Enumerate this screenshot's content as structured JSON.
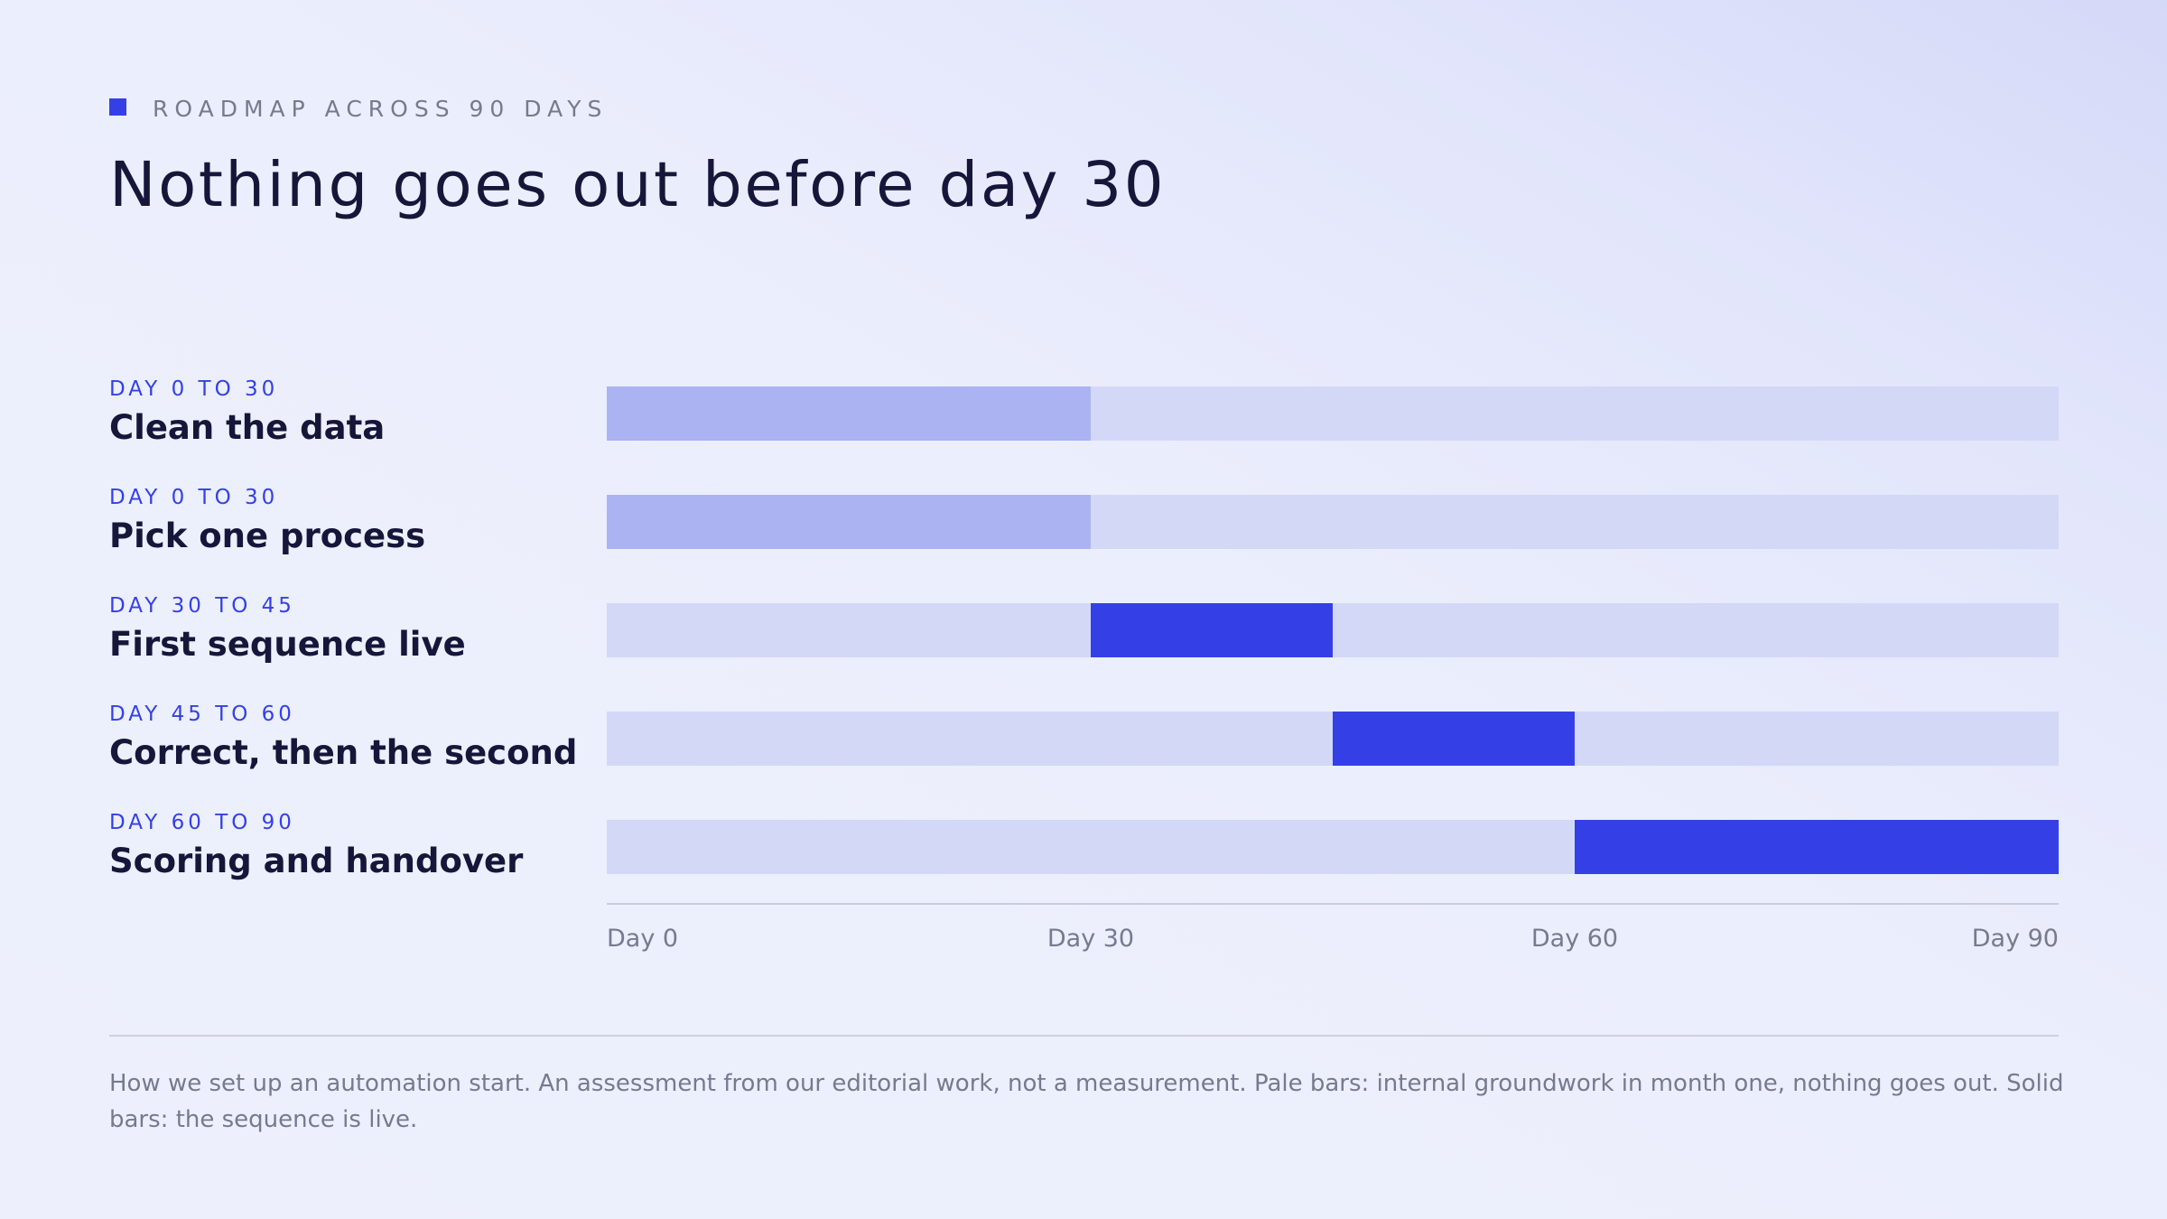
{
  "eyebrow": "ROADMAP ACROSS 90 DAYS",
  "headline": "Nothing goes out before day 30",
  "footnote": "How we set up an automation start. An assessment from our editorial work, not a measurement. Pale bars: internal groundwork in month one, nothing goes out. Solid bars: the sequence is live.",
  "colors": {
    "accent": "#3440e6",
    "pale_bar": "#abb3f3",
    "track": "#d4d8f7",
    "text_dark": "#16163a",
    "text_muted": "#777a8e"
  },
  "chart_data": {
    "type": "bar",
    "orientation": "horizontal-gantt",
    "xlim": [
      0,
      90
    ],
    "x_ticks": [
      {
        "value": 0,
        "label": "Day 0"
      },
      {
        "value": 30,
        "label": "Day 30"
      },
      {
        "value": 60,
        "label": "Day 60"
      },
      {
        "value": 90,
        "label": "Day 90"
      }
    ],
    "rows": [
      {
        "range_label": "DAY 0 TO 30",
        "name": "Clean the data",
        "start": 0,
        "end": 30,
        "style": "pale"
      },
      {
        "range_label": "DAY 0 TO 30",
        "name": "Pick one process",
        "start": 0,
        "end": 30,
        "style": "pale"
      },
      {
        "range_label": "DAY 30 TO 45",
        "name": "First sequence live",
        "start": 30,
        "end": 45,
        "style": "solid"
      },
      {
        "range_label": "DAY 45 TO 60",
        "name": "Correct, then the second",
        "start": 45,
        "end": 60,
        "style": "solid"
      },
      {
        "range_label": "DAY 60 TO 90",
        "name": "Scoring and handover",
        "start": 60,
        "end": 90,
        "style": "solid"
      }
    ]
  }
}
